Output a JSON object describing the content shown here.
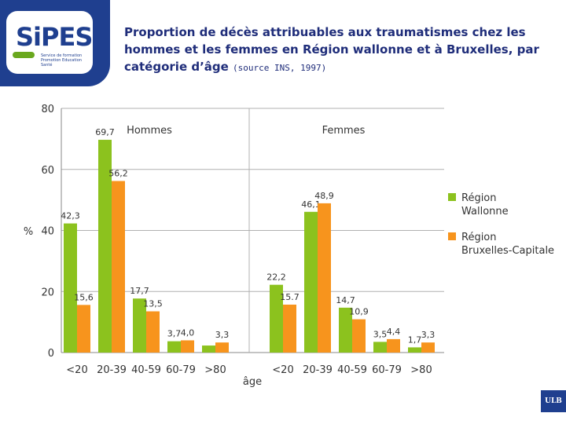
{
  "logo": {
    "word": "SiPES",
    "subtitle_line1": "Service de formation",
    "subtitle_line2": "Promotion Education Santé"
  },
  "title": {
    "main": "Proportion de décès attribuables aux traumatismes chez les hommes et les femmes en Région wallonne et à Bruxelles, par catégorie d’âge",
    "source": "(source INS, 1997)"
  },
  "footer": {
    "badge": "ULB"
  },
  "colors": {
    "wallonne": "#8cc21e",
    "bruxelles": "#f7941d",
    "axis": "#888888",
    "grid": "#b0b0b0",
    "label": "#333333"
  },
  "chart_data": {
    "type": "bar",
    "ylabel": "%",
    "xlabel": "âge",
    "ylim": [
      0,
      80
    ],
    "yticks": [
      "0",
      "20",
      "40",
      "60",
      "80"
    ],
    "grid": true,
    "groups": [
      {
        "name": "Hommes",
        "categories": [
          "<20",
          "20-39",
          "40-59",
          "60-79",
          ">80"
        ],
        "series": [
          {
            "name": "Région Wallonne",
            "values": [
              42.3,
              69.7,
              17.7,
              3.7,
              2.3
            ],
            "labels": [
              "42,3",
              "69,7",
              "17,7",
              "3,7",
              ""
            ]
          },
          {
            "name": "Région Bruxelles-Capitale",
            "values": [
              15.6,
              56.2,
              13.5,
              4.0,
              3.3
            ],
            "labels": [
              "15,6",
              "56,2",
              "13,5",
              "4,0",
              "3,3"
            ]
          }
        ]
      },
      {
        "name": "Femmes",
        "categories": [
          "<20",
          "20-39",
          "40-59",
          "60-79",
          ">80"
        ],
        "series": [
          {
            "name": "Région Wallonne",
            "values": [
              22.2,
              46.1,
              14.7,
              3.5,
              1.7
            ],
            "labels": [
              "22,2",
              "46,1",
              "14,7",
              "3,5",
              "1,7"
            ]
          },
          {
            "name": "Région Bruxelles-Capitale",
            "values": [
              15.7,
              48.9,
              10.9,
              4.4,
              3.3
            ],
            "labels": [
              "15.7",
              "48,9",
              "10,9",
              "4,4",
              "3,3"
            ]
          }
        ]
      }
    ],
    "legend": [
      {
        "line1": "Région",
        "line2": "Wallonne"
      },
      {
        "line1": "Région",
        "line2": "Bruxelles-Capitale"
      }
    ],
    "legend_position": "right"
  }
}
